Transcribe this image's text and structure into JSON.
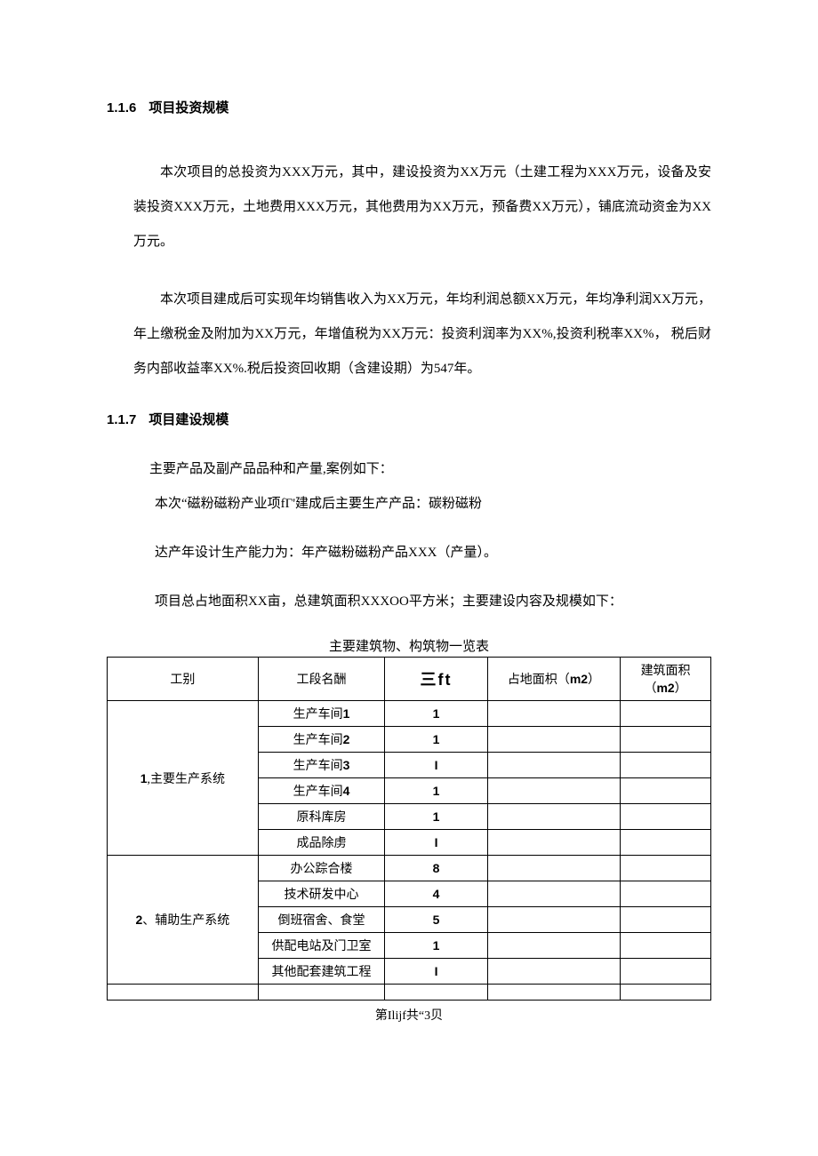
{
  "section116": {
    "num": "1.1.6",
    "title": "项目投资规模",
    "p1": "本次项目的总投资为XXX万元，其中，建设投资为XX万元（土建工程为XXX万元，设备及安装投资XXX万元，土地费用XXX万元，其他费用为XX万元，预备费XX万元），铺底流动资金为XX万元。",
    "p2": "本次项目建成后可实现年均销售收入为XX万元，年均利润总额XX万元，年均净利润XX万元，年上缴税金及附加为XX万元，年增值税为XX万元：投资利润率为XX%,投资利税率XX%， 税后财务内部收益率XX%.税后投资回收期（含建设期）为547年。"
  },
  "section117": {
    "num": "1.1.7",
    "title": "项目建设规模",
    "p1": "主要产品及副产品品种和产量,案例如下：",
    "p2": "本次“磁粉磁粉产业项fΓ'建成后主要生产产品：碳粉磁粉",
    "p3": "达产年设计生产能力为：年产磁粉磁粉产品XXX（产量）。",
    "p4": "项目总占地面积XX亩，总建筑面积XXXOO平方米；主要建设内容及规模如下："
  },
  "table": {
    "title": "主要建筑物、构筑物一览表",
    "headers": {
      "c1": "工别",
      "c2": "工段名酬",
      "c3": "三ft",
      "c4_pre": "占地面枳（",
      "c4_m2": "m2",
      "c4_post": "）",
      "c5_pre": "建筑面积（",
      "c5_m2": "m2",
      "c5_post": "）"
    },
    "groups": [
      {
        "label_pre": "1",
        "label_post": ",主要生产系统",
        "rows": [
          {
            "name": "生产车间1",
            "qty": "1"
          },
          {
            "name": "生产车间2",
            "qty": "1"
          },
          {
            "name": "生产车间3",
            "qty": "I"
          },
          {
            "name": "生产车间4",
            "qty": "1"
          },
          {
            "name": "原科库房",
            "qty": "1"
          },
          {
            "name": "成品除虏",
            "qty": "I"
          }
        ]
      },
      {
        "label_pre": "2",
        "label_post": "、辅助生产系统",
        "rows": [
          {
            "name": "办公踪合楼",
            "qty": "8"
          },
          {
            "name": "技术研发中心",
            "qty": "4"
          },
          {
            "name": "倒班宿舍、食堂",
            "qty": "5"
          },
          {
            "name": "供配电站及门卫室",
            "qty": "1"
          },
          {
            "name": "其他配套建筑工程",
            "qty": "I"
          }
        ]
      }
    ]
  },
  "footer": "第Ilijf共“3贝"
}
